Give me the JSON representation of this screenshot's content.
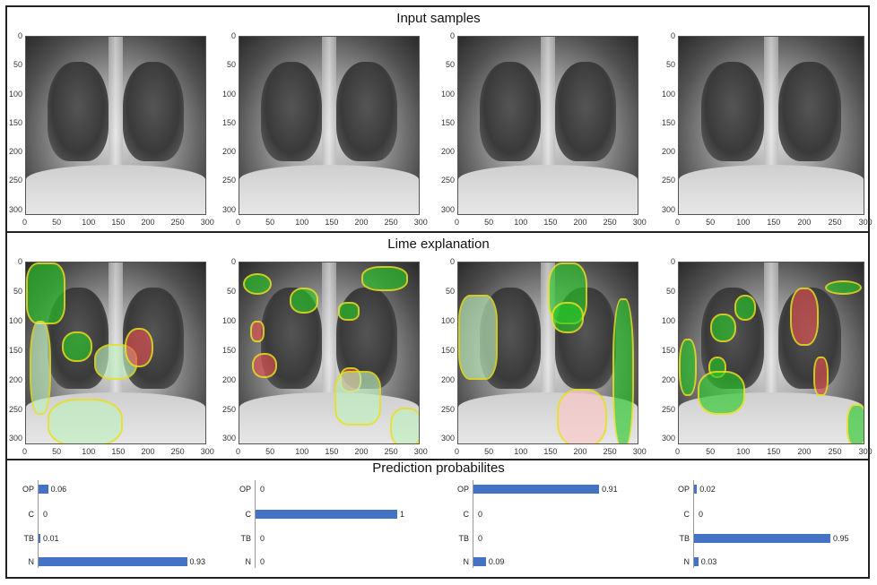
{
  "titles": {
    "input": "Input samples",
    "lime": "Lime explanation",
    "pred": "Prediction probabilites"
  },
  "axes": {
    "x_ticks": [
      "0",
      "50",
      "100",
      "150",
      "200",
      "250",
      "300"
    ],
    "y_ticks": [
      "0",
      "50",
      "100",
      "150",
      "200",
      "250",
      "300"
    ]
  },
  "chart_data": [
    {
      "type": "bar",
      "categories": [
        "OP",
        "C",
        "TB",
        "N"
      ],
      "values": [
        0.06,
        0,
        0.01,
        0.93
      ],
      "value_labels": [
        "0.06",
        "0",
        "0.01",
        "0.93"
      ]
    },
    {
      "type": "bar",
      "categories": [
        "OP",
        "C",
        "TB",
        "N"
      ],
      "values": [
        0,
        1,
        0,
        0
      ],
      "value_labels": [
        "0",
        "1",
        "0",
        "0"
      ]
    },
    {
      "type": "bar",
      "categories": [
        "OP",
        "C",
        "TB",
        "N"
      ],
      "values": [
        0.91,
        0,
        0,
        0.09
      ],
      "value_labels": [
        "0.91",
        "0",
        "0",
        "0.09"
      ]
    },
    {
      "type": "bar",
      "categories": [
        "OP",
        "C",
        "TB",
        "N"
      ],
      "values": [
        0.02,
        0,
        0.95,
        0.03
      ],
      "value_labels": [
        "0.02",
        "0",
        "0.95",
        "0.03"
      ]
    }
  ],
  "colors": {
    "bar": "#4472c4",
    "positive_region": "#28c828",
    "negative_region": "#e65050",
    "boundary": "#e8e020"
  }
}
